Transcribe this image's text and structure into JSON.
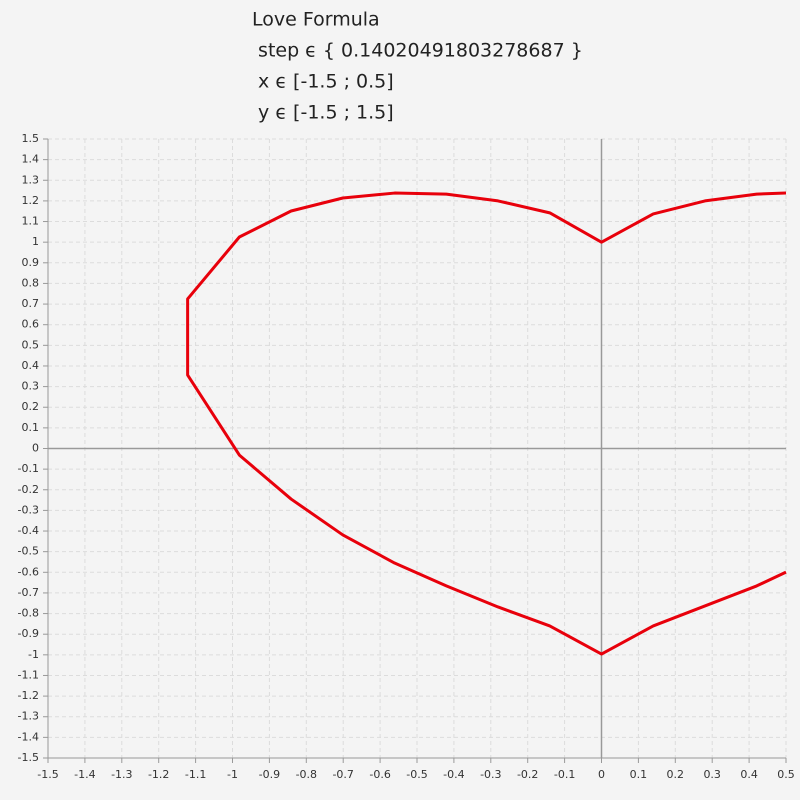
{
  "chart_data": {
    "type": "line",
    "title_lines": [
      "Love Formula",
      " step ϵ { 0.14020491803278687 }",
      " x ϵ [-1.5 ; 0.5]",
      " y ϵ [-1.5 ; 1.5]"
    ],
    "x": [
      0.5,
      0.4206,
      0.2804,
      0.1402,
      0,
      -0.1402,
      -0.2804,
      -0.4206,
      -0.5608,
      -0.701,
      -0.8412,
      -0.9814,
      -1.1216,
      -1.1216,
      -0.9814,
      -0.8412,
      -0.701,
      -0.5608,
      -0.4206,
      -0.2804,
      -0.1402,
      0,
      0.1402,
      0.2804,
      0.4206,
      0.5
    ],
    "values": [
      1.238,
      1.233,
      1.2,
      1.137,
      1.0,
      1.142,
      1.2,
      1.233,
      1.238,
      1.214,
      1.151,
      1.025,
      0.725,
      0.356,
      -0.032,
      -0.245,
      -0.419,
      -0.555,
      -0.666,
      -0.768,
      -0.86,
      -0.996,
      -0.86,
      -0.763,
      -0.666,
      -0.599
    ],
    "color": "#e8000b",
    "xlim": [
      -1.5,
      0.5
    ],
    "ylim": [
      -1.5,
      1.5
    ],
    "xticks": [
      -1.5,
      -1.4,
      -1.3,
      -1.2,
      -1.1,
      -1,
      -0.9,
      -0.8,
      -0.7,
      -0.6,
      -0.5,
      -0.4,
      -0.3,
      -0.2,
      -0.1,
      0,
      0.1,
      0.2,
      0.3,
      0.4,
      0.5
    ],
    "yticks": [
      -1.5,
      -1.4,
      -1.3,
      -1.2,
      -1.1,
      -1,
      -0.9,
      -0.8,
      -0.7,
      -0.6,
      -0.5,
      -0.4,
      -0.3,
      -0.2,
      -0.1,
      0,
      0.1,
      0.2,
      0.3,
      0.4,
      0.5,
      0.6,
      0.7,
      0.8,
      0.9,
      1,
      1.1,
      1.2,
      1.3,
      1.4,
      1.5
    ],
    "grid": true
  }
}
